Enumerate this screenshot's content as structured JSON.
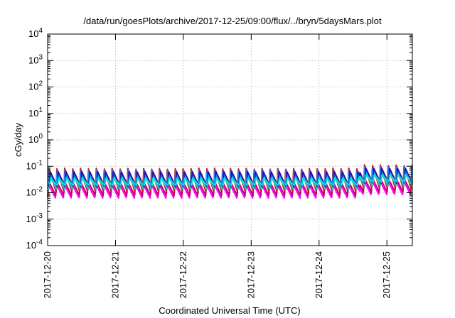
{
  "chart_data": {
    "type": "line",
    "title": "/data/run/goesPlots/archive/2017-12-25/09:00/flux/../bryn/5daysMars.plot",
    "xlabel": "Coordinated Universal Time (UTC)",
    "ylabel": "cGy/day",
    "x_range_days": [
      0,
      5.375
    ],
    "x_ticks": [
      {
        "label": "2017-12-20",
        "day": 0
      },
      {
        "label": "2017-12-21",
        "day": 1
      },
      {
        "label": "2017-12-22",
        "day": 2
      },
      {
        "label": "2017-12-23",
        "day": 3
      },
      {
        "label": "2017-12-24",
        "day": 4
      },
      {
        "label": "2017-12-25",
        "day": 5
      }
    ],
    "y_scale": "log",
    "ylim": [
      0.0001,
      10000
    ],
    "y_ticks": [
      {
        "base": "10",
        "exp": "4",
        "value": 10000
      },
      {
        "base": "10",
        "exp": "3",
        "value": 1000
      },
      {
        "base": "10",
        "exp": "2",
        "value": 100
      },
      {
        "base": "10",
        "exp": "1",
        "value": 10
      },
      {
        "base": "10",
        "exp": "0",
        "value": 1
      },
      {
        "base": "10",
        "exp": "-1",
        "value": 0.1
      },
      {
        "base": "10",
        "exp": "-2",
        "value": 0.01
      },
      {
        "base": "10",
        "exp": "-3",
        "value": 0.001
      },
      {
        "base": "10",
        "exp": "-4",
        "value": 0.0001
      }
    ],
    "grid": true,
    "pattern": {
      "cycles_per_day": 8.6,
      "step_day": 4.6,
      "step_factor": 1.35,
      "peak_to_trough_ratio": 3.4
    },
    "series": [
      {
        "color": "#ff00ff",
        "peak": 0.022,
        "trough": 0.0062
      },
      {
        "color": "#c0006a",
        "peak": 0.028,
        "trough": 0.0078
      },
      {
        "color": "#e01010",
        "peak": 0.085,
        "trough": 0.0105
      },
      {
        "color": "#2080ff",
        "peak": 0.072,
        "trough": 0.0125
      },
      {
        "color": "#00c0ff",
        "peak": 0.05,
        "trough": 0.0145
      },
      {
        "color": "#40c0a0",
        "peak": 0.042,
        "trough": 0.0135
      },
      {
        "color": "#3010a0",
        "peak": 0.065,
        "trough": 0.0165
      },
      {
        "color": "#00e0e0",
        "peak": 0.036,
        "trough": 0.0185
      }
    ]
  }
}
